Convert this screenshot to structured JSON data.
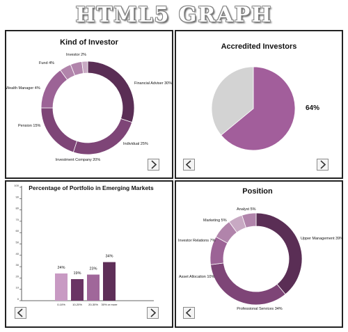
{
  "header": {
    "title": "HTML5 GRAPH"
  },
  "colors": {
    "c1": "#5a2e55",
    "c2": "#7e4577",
    "c3": "#9c6396",
    "c4": "#b184ab",
    "c5": "#c8a9c3",
    "pie_main": "#a25e9b",
    "pie_rest": "#d3d3d3",
    "bar1": "#c89ac3",
    "bar2": "#6a3464",
    "bar3": "#a0679a",
    "bar4": "#5e2f58"
  },
  "chart_data": [
    {
      "type": "pie",
      "donut": true,
      "title": "Kind of Investor",
      "labels": [
        "Financial Adviser 30%",
        "Individual 25%",
        "Investment Company 20%",
        "Pension 15%",
        "Wealth Manager 4%",
        "Fund 4%",
        "Investor 2%"
      ],
      "values": [
        30,
        25,
        20,
        15,
        4,
        4,
        2
      ]
    },
    {
      "type": "pie",
      "title": "Accredited Investors",
      "values": [
        64,
        36
      ],
      "value_label": "64%"
    },
    {
      "type": "bar",
      "title": "Percentage of Portfolio in Emerging Markets",
      "categories": [
        "0-10%",
        "10-20%",
        "20-30%",
        "30% or more"
      ],
      "values": [
        24,
        19,
        23,
        34
      ],
      "value_labels": [
        "24%",
        "19%",
        "23%",
        "34%"
      ],
      "ylim": [
        0,
        100
      ],
      "yticks": [
        0,
        10,
        20,
        30,
        40,
        50,
        60,
        70,
        80,
        90,
        100
      ]
    },
    {
      "type": "pie",
      "donut": true,
      "title": "Position",
      "labels": [
        "Upper Management 39%",
        "Professional Services 34%",
        "Asset Allocation 10%",
        "Investor Relations 7%",
        "Marketing 5%",
        "Analyst 5%"
      ],
      "values": [
        39,
        34,
        10,
        7,
        5,
        5
      ]
    }
  ]
}
